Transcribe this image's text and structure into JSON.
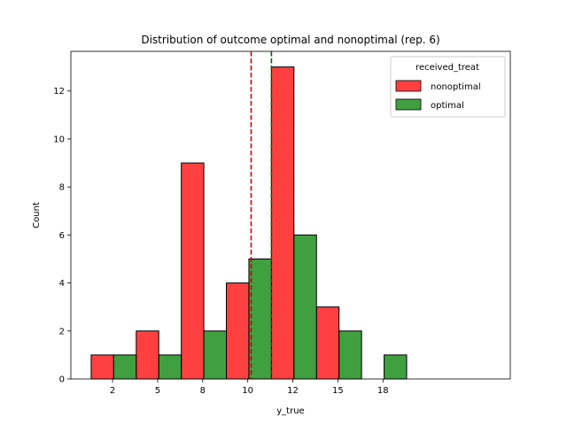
{
  "chart_data": {
    "type": "bar",
    "title": "Distribution of outcome optimal and nonoptimal (rep. 6)",
    "xlabel": "y_true",
    "ylabel": "Count",
    "xlim": [
      0.6,
      20.1
    ],
    "ylim": [
      0,
      13.65
    ],
    "xticks": [
      {
        "value": 2.45,
        "label": "2"
      },
      {
        "value": 4.45,
        "label": "5"
      },
      {
        "value": 6.45,
        "label": "8"
      },
      {
        "value": 8.45,
        "label": "10"
      },
      {
        "value": 10.45,
        "label": "12"
      },
      {
        "value": 12.45,
        "label": "15"
      },
      {
        "value": 14.45,
        "label": "18"
      }
    ],
    "yticks": [
      0,
      2,
      4,
      6,
      8,
      10,
      12
    ],
    "legend": {
      "title": "received_treat",
      "placement": "upper right"
    },
    "series": [
      {
        "name": "nonoptimal",
        "color": "#ff0000",
        "bars": [
          {
            "x0": 1.5,
            "x1": 2.5,
            "count": 1
          },
          {
            "x0": 3.5,
            "x1": 4.5,
            "count": 2
          },
          {
            "x0": 5.5,
            "x1": 6.5,
            "count": 9
          },
          {
            "x0": 7.5,
            "x1": 8.5,
            "count": 4
          },
          {
            "x0": 9.5,
            "x1": 10.5,
            "count": 13
          },
          {
            "x0": 11.5,
            "x1": 12.5,
            "count": 3
          }
        ],
        "mean_line": 8.6
      },
      {
        "name": "optimal",
        "color": "#008000",
        "bars": [
          {
            "x0": 2.5,
            "x1": 3.5,
            "count": 1
          },
          {
            "x0": 4.5,
            "x1": 5.5,
            "count": 1
          },
          {
            "x0": 6.5,
            "x1": 7.5,
            "count": 2
          },
          {
            "x0": 8.5,
            "x1": 9.5,
            "count": 5
          },
          {
            "x0": 10.5,
            "x1": 11.5,
            "count": 6
          },
          {
            "x0": 12.5,
            "x1": 13.5,
            "count": 2
          },
          {
            "x0": 14.5,
            "x1": 15.5,
            "count": 1
          }
        ],
        "mean_line": 9.5
      }
    ]
  }
}
